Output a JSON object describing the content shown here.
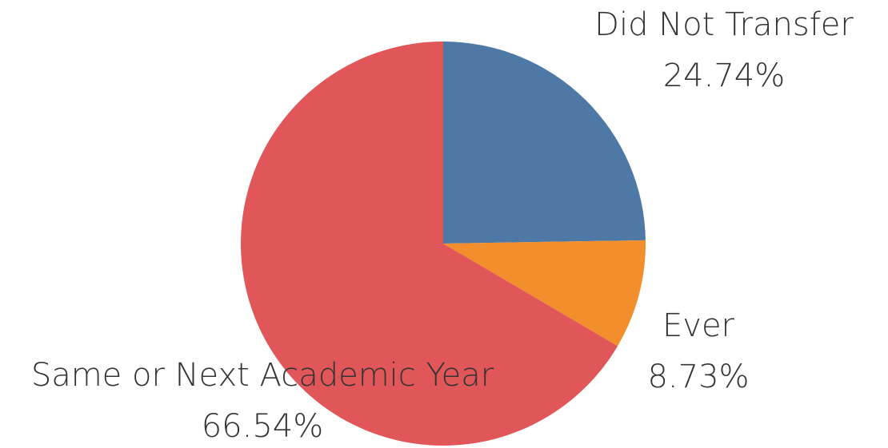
{
  "chart_data": {
    "type": "pie",
    "categories": [
      "Did Not Transfer",
      "Ever",
      "Same or Next Academic Year"
    ],
    "values": [
      24.74,
      8.73,
      66.54
    ],
    "value_labels": [
      "24.74%",
      "8.73%",
      "66.54%"
    ],
    "colors": [
      "#4e79a7",
      "#f28e2b",
      "#e15759"
    ]
  }
}
